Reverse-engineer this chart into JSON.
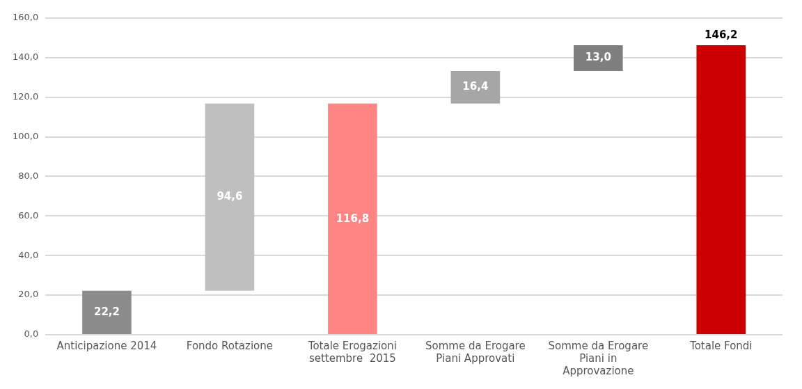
{
  "chart_data": {
    "type": "bar",
    "categories": [
      "Anticipazione 2014",
      "Fondo Rotazione",
      "Totale Erogazioni settembre  2015",
      "Somme da Erogare Piani Approvati",
      "Somme da Erogare Piani in Approvazione",
      "Totale Fondi"
    ],
    "values": [
      22.2,
      94.6,
      116.8,
      16.4,
      13.0,
      146.2
    ],
    "base": [
      0,
      22.2,
      0,
      116.8,
      133.2,
      0
    ],
    "colors": [
      "#8c8c8c",
      "#bfbfbf",
      "#ff8585",
      "#a6a6a6",
      "#7f7f7f",
      "#cc0000"
    ],
    "value_labels": [
      "22,2",
      "94,6",
      "116,8",
      "16,4",
      "13,0",
      "146,2"
    ],
    "ylim": [
      0,
      160
    ],
    "yticks": [
      {
        "value": 0,
        "label": "0,0"
      },
      {
        "value": 20,
        "label": "20,0"
      },
      {
        "value": 40,
        "label": "40,0"
      },
      {
        "value": 60,
        "label": "60,0"
      },
      {
        "value": 80,
        "label": "80,0"
      },
      {
        "value": 100,
        "label": "100,0"
      },
      {
        "value": 120,
        "label": "120,0"
      },
      {
        "value": 140,
        "label": "140,0"
      },
      {
        "value": 160,
        "label": "160,0"
      }
    ],
    "grid": "y",
    "legend": false
  }
}
